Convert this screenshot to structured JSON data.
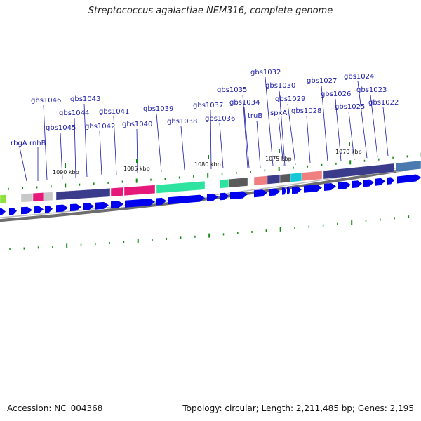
{
  "title": "Streptococcus agalactiae NEM316, complete genome",
  "footer": {
    "accession": "Accession: NC_004368",
    "summary": "Topology: circular; Length: 2,211,485 bp; Genes: 2,195"
  },
  "ticks": [
    "1090 kbp",
    "1085 kbp",
    "1080 kbp",
    "1075 kbp",
    "1070 kbp"
  ],
  "genes": [
    "rbgA",
    "rnhB",
    "gbs1046",
    "gbs1045",
    "gbs1044",
    "gbs1043",
    "gbs1042",
    "gbs1041",
    "gbs1040",
    "gbs1039",
    "gbs1038",
    "gbs1037",
    "gbs1036",
    "gbs1035",
    "gbs1034",
    "truB",
    "gbs1032",
    "spxA",
    "gbs1030",
    "gbs1029",
    "gbs1028",
    "gbs1027",
    "gbs1026",
    "gbs1025",
    "gbs1024",
    "gbs1023",
    "gbs1022"
  ],
  "colors": {
    "label": "#1a1aa8",
    "arrow": "#0000ee",
    "tick": "#138a13",
    "ring": "#808080",
    "cog_purple": "#3b3b8c",
    "cog_pink": "#e6187a",
    "cog_green": "#2ee3a0",
    "cog_salmon": "#f08080",
    "cog_gray": "#5a5a5a",
    "cog_cyan": "#18c8d8",
    "cog_steel": "#4a7ab0",
    "cog_light": "#c8c8c8",
    "cog_lime": "#8ee03a"
  }
}
